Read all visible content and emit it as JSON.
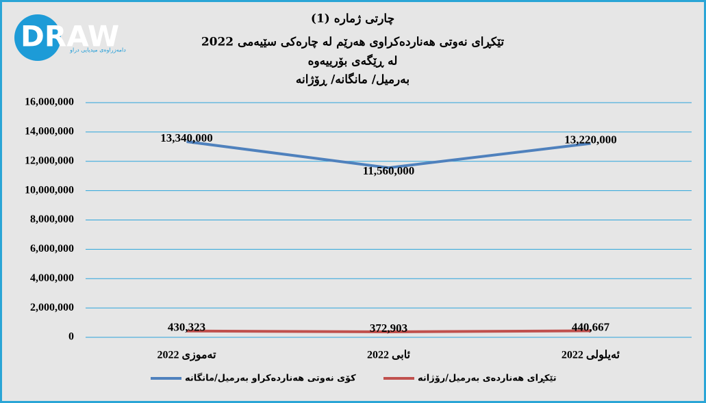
{
  "logo": {
    "text": "DRAW",
    "tagline": "دامەزراوەی میدیایی دراو"
  },
  "chart_data": {
    "type": "line",
    "title": [
      "چارتی ژمارە (1)",
      "تێکڕای نەوتی هەناردەکراوی هەرێم لە چارەکی سێیەمی 2022",
      "لە ڕێگەی بۆرییەوە",
      "بەرمیل/ مانگانە/ ڕۆژانە"
    ],
    "categories": [
      "تەموزی 2022",
      "ئابی 2022",
      "ئەیلولی 2022"
    ],
    "series": [
      {
        "name": "کۆی نەوتی هەناردەکراو بەرمیل/مانگانە",
        "color": "#4f81bd",
        "values": [
          13340000,
          11560000,
          13220000
        ],
        "value_labels": [
          "13,340,000",
          "11,560,000",
          "13,220,000"
        ]
      },
      {
        "name": "تێکڕای هەناردەی بەرمیل/رۆژانە",
        "color": "#c0504d",
        "values": [
          430323,
          372903,
          440667
        ],
        "value_labels": [
          "430,323",
          "372,903",
          "440,667"
        ]
      }
    ],
    "ylim": [
      0,
      16000000
    ],
    "yticks": [
      0,
      {
        "value": 2000000,
        "label": "2,000,000"
      },
      {
        "value": 4000000,
        "label": "4,000,000"
      },
      {
        "value": 6000000,
        "label": "6,000,000"
      },
      {
        "value": 8000000,
        "label": "8,000,000"
      },
      {
        "value": 10000000,
        "label": "10,000,000"
      },
      {
        "value": 12000000,
        "label": "12,000,000"
      },
      {
        "value": 14000000,
        "label": "14,000,000"
      },
      {
        "value": 16000000,
        "label": "16,000,000"
      }
    ],
    "grid": true,
    "legend": "bottom"
  }
}
